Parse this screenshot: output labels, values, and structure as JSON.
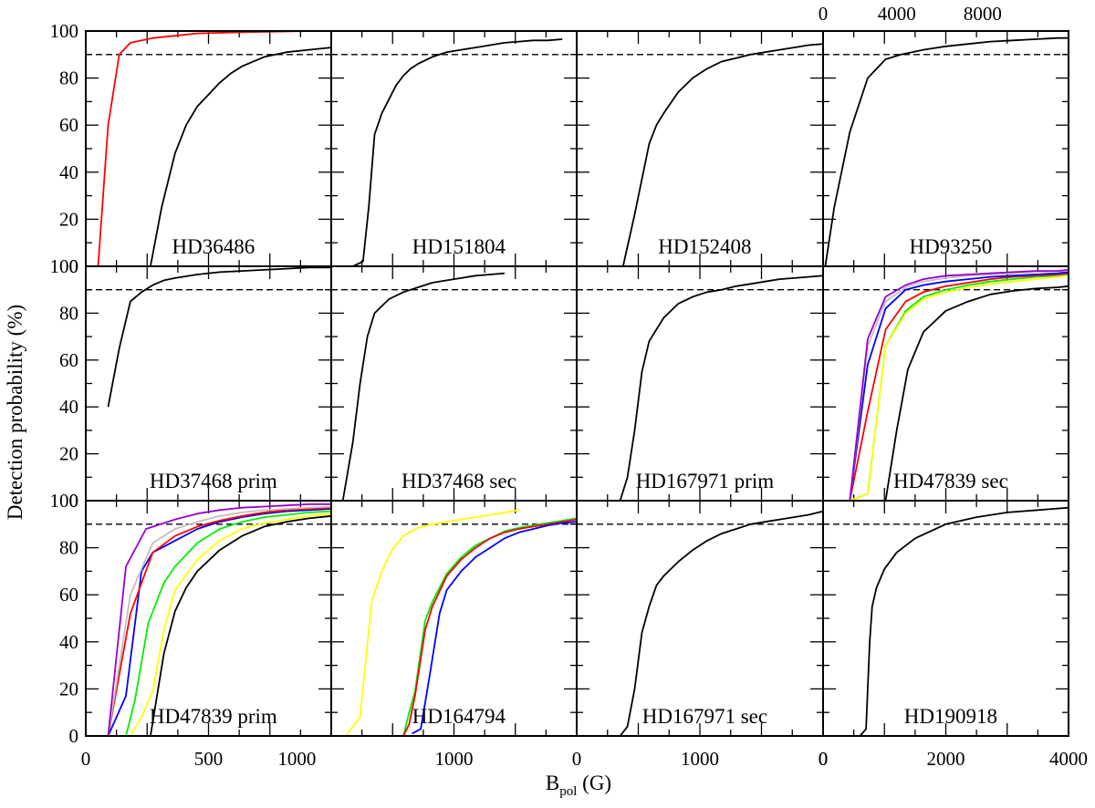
{
  "chart_data": {
    "type": "line",
    "ylabel": "Detection probability (%)",
    "xlabel": "B",
    "xlabel_sub": "pol",
    "xlabel_unit": " (G)",
    "ylim": [
      0,
      100
    ],
    "yticks": [
      0,
      20,
      40,
      60,
      80,
      100
    ],
    "threshold": 90,
    "top_axis_ticks": [
      "0",
      "4000",
      "8000"
    ],
    "bottom_axis_ticks": [
      [
        "0",
        "500",
        "1000"
      ],
      [
        "1000",
        "0"
      ],
      [
        "1000",
        "0"
      ],
      [
        "0",
        "2000",
        "4000"
      ]
    ],
    "panels": [
      {
        "label": "HD36486",
        "xlim": [
          0,
          1100
        ],
        "series": [
          {
            "color": "#ff0000",
            "x": [
              55,
              100,
              150,
              200,
              300,
              400,
              500,
              700,
              1000
            ],
            "y": [
              0,
              60,
              90,
              95,
              97,
              98,
              99,
              99.5,
              100
            ]
          },
          {
            "color": "#000000",
            "x": [
              290,
              340,
              400,
              450,
              500,
              550,
              600,
              650,
              700,
              800,
              900,
              1000,
              1100
            ],
            "y": [
              0,
              25,
              48,
              60,
              68,
              73,
              78,
              82,
              85,
              89,
              91,
              92,
              93
            ]
          }
        ]
      },
      {
        "label": "HD151804",
        "xlim": [
          0,
          1700
        ],
        "series": [
          {
            "color": "#000000",
            "x": [
              150,
              220,
              260,
              300,
              350,
              400,
              450,
              500,
              550,
              600,
              700,
              800,
              900,
              1000,
              1100,
              1200,
              1300,
              1400,
              1500,
              1600
            ],
            "y": [
              0,
              2,
              25,
              56,
              65,
              71,
              77,
              81,
              84,
              86,
              89,
              91,
              92,
              93,
              94,
              95,
              95.5,
              96,
              96,
              96.5
            ]
          }
        ]
      },
      {
        "label": "HD152408",
        "xlim": [
          0,
          1700
        ],
        "series": [
          {
            "color": "#000000",
            "x": [
              320,
              400,
              500,
              550,
              600,
              700,
              800,
              900,
              1000,
              1100,
              1200,
              1300,
              1400,
              1500,
              1600,
              1700
            ],
            "y": [
              0,
              22,
              52,
              60,
              65,
              74,
              80,
              84,
              87,
              88.5,
              90,
              91,
              92,
              93,
              94,
              94.5
            ]
          }
        ]
      },
      {
        "label": "HD93250",
        "xlim": [
          0,
          11000
        ],
        "series": [
          {
            "color": "#000000",
            "x": [
              100,
              500,
              1200,
              2000,
              2800,
              3500,
              4500,
              5500,
              6500,
              7500,
              8500,
              9500,
              10500,
              11000
            ],
            "y": [
              0,
              25,
              57,
              80,
              88,
              90,
              92,
              93.5,
              94.5,
              95.5,
              96,
              96.5,
              97,
              97
            ]
          }
        ]
      },
      {
        "label": "HD37468 prim",
        "xlim": [
          0,
          1100
        ],
        "series": [
          {
            "color": "#000000",
            "x": [
              100,
              150,
              200,
              250,
              300,
              350,
              400,
              500,
              600,
              700,
              800,
              900,
              1000,
              1100
            ],
            "y": [
              40,
              65,
              85,
              89,
              92,
              94,
              95,
              96.5,
              97.5,
              98,
              98.5,
              99,
              99.5,
              99.5
            ]
          }
        ]
      },
      {
        "label": "HD37468 sec",
        "xlim": [
          0,
          1700
        ],
        "series": [
          {
            "color": "#000000",
            "x": [
              80,
              150,
              200,
              250,
              300,
              400,
              500,
              600,
              700,
              800,
              900,
              1000,
              1100,
              1200
            ],
            "y": [
              0,
              25,
              50,
              70,
              80,
              86,
              89,
              91,
              93,
              94,
              95,
              96,
              96.5,
              97
            ]
          }
        ]
      },
      {
        "label": "HD167971 prim",
        "xlim": [
          0,
          1700
        ],
        "series": [
          {
            "color": "#000000",
            "x": [
              300,
              350,
              400,
              450,
              500,
              600,
              700,
              800,
              900,
              1000,
              1100,
              1200,
              1300,
              1400,
              1500,
              1600,
              1700
            ],
            "y": [
              0,
              10,
              30,
              55,
              68,
              78,
              84,
              87,
              89,
              90,
              91.5,
              92.5,
              93.5,
              94.5,
              95,
              95.5,
              96
            ]
          }
        ]
      },
      {
        "label": "HD47839 sec",
        "xlim": [
          0,
          11000
        ],
        "series": [
          {
            "color": "#000000",
            "x": [
              2800,
              3300,
              3800,
              4500,
              5500,
              6500,
              7500,
              8500,
              9500,
              10500,
              11000
            ],
            "y": [
              0,
              30,
              56,
              72,
              81,
              85,
              88,
              89.5,
              90.5,
              91,
              91.5
            ]
          },
          {
            "color": "#00ee00",
            "x": [
              1200,
              2000,
              2800,
              3700,
              4500,
              5500,
              6500,
              7500,
              8500,
              9500,
              10500,
              11000
            ],
            "y": [
              0,
              3,
              66,
              81,
              87,
              90,
              92,
              93.5,
              94.5,
              95.5,
              96,
              96.5
            ]
          },
          {
            "color": "#ffff00",
            "x": [
              1200,
              2000,
              2800,
              3700,
              4500,
              5500,
              6500,
              7500,
              8500,
              9500,
              10500,
              11000
            ],
            "y": [
              0,
              3,
              66,
              80,
              86,
              89,
              91,
              92.5,
              93.5,
              94.5,
              95.5,
              96
            ]
          },
          {
            "color": "#ff0000",
            "x": [
              1200,
              2000,
              2800,
              3700,
              4500,
              5500,
              6500,
              7500,
              8500,
              9500,
              10500,
              11000
            ],
            "y": [
              0,
              38,
              73,
              85,
              89,
              91.5,
              93,
              94.5,
              95.5,
              96,
              96.5,
              97
            ]
          },
          {
            "color": "#0000ff",
            "x": [
              1200,
              2000,
              2800,
              3700,
              4500,
              5500,
              6500,
              7500,
              8500,
              9500,
              10500,
              11000
            ],
            "y": [
              0,
              58,
              82,
              90,
              92,
              93.5,
              94.5,
              95.5,
              96,
              96.5,
              97,
              97.5
            ]
          },
          {
            "color": "#c0c0c0",
            "x": [
              1200,
              2000,
              2800,
              3700,
              4500,
              5500,
              6500,
              7500,
              8500,
              9500,
              10500,
              11000
            ],
            "y": [
              0,
              66,
              85,
              91,
              93.5,
              95,
              96,
              96.5,
              97,
              97.5,
              98,
              98
            ]
          },
          {
            "color": "#9900cc",
            "x": [
              1200,
              2000,
              2800,
              3700,
              4500,
              5500,
              6500,
              7500,
              8500,
              9500,
              10500,
              11000
            ],
            "y": [
              0,
              69,
              87,
              92,
              94.5,
              96,
              96.5,
              97,
              97.5,
              98,
              98,
              98.5
            ]
          }
        ]
      },
      {
        "label": "HD47839 prim",
        "xlim": [
          0,
          1100
        ],
        "series": [
          {
            "color": "#000000",
            "x": [
              290,
              350,
              400,
              450,
              500,
              600,
              700,
              800,
              900,
              1000,
              1100
            ],
            "y": [
              0,
              35,
              53,
              63,
              70,
              79,
              85,
              89,
              91,
              92.5,
              93.5
            ]
          },
          {
            "color": "#ffff00",
            "x": [
              200,
              250,
              300,
              350,
              400,
              500,
              600,
              700,
              800,
              900,
              1000,
              1100
            ],
            "y": [
              0,
              8,
              19,
              45,
              62,
              75,
              83,
              88,
              90.5,
              92,
              93.5,
              94.5
            ]
          },
          {
            "color": "#00ee00",
            "x": [
              180,
              220,
              280,
              350,
              400,
              500,
              600,
              700,
              800,
              900,
              1000,
              1100
            ],
            "y": [
              0,
              15,
              48,
              65,
              72,
              82,
              88,
              91,
              93,
              94,
              95,
              95.5
            ]
          },
          {
            "color": "#0000ff",
            "x": [
              100,
              180,
              250,
              300,
              400,
              500,
              600,
              700,
              800,
              900,
              1000,
              1100
            ],
            "y": [
              0,
              17,
              70,
              78,
              83,
              88,
              91,
              93,
              94.5,
              95.5,
              96,
              96.5
            ]
          },
          {
            "color": "#ff0000",
            "x": [
              100,
              200,
              300,
              400,
              500,
              600,
              700,
              800,
              900,
              1000,
              1100
            ],
            "y": [
              0,
              52,
              78,
              85,
              89,
              91.5,
              93.5,
              95,
              96,
              96.5,
              97
            ]
          },
          {
            "color": "#c0c0c0",
            "x": [
              100,
              200,
              300,
              400,
              500,
              600,
              700,
              800,
              900,
              1000,
              1100
            ],
            "y": [
              0,
              60,
              82,
              88,
              91,
              93.5,
              95,
              96,
              96.5,
              97,
              97.5
            ]
          },
          {
            "color": "#9900cc",
            "x": [
              100,
              180,
              270,
              400,
              500,
              600,
              700,
              800,
              900,
              1000,
              1100
            ],
            "y": [
              0,
              72,
              88,
              92,
              94.5,
              96,
              97,
              97.5,
              98,
              98.5,
              98.5
            ]
          }
        ]
      },
      {
        "label": "HD164794",
        "xlim": [
          0,
          1700
        ],
        "series": [
          {
            "color": "#ffff00",
            "x": [
              100,
              200,
              280,
              350,
              420,
              500,
              600,
              700,
              800,
              900,
              1000,
              1100,
              1200,
              1300
            ],
            "y": [
              0,
              8,
              57,
              70,
              79,
              85,
              88.5,
              90,
              91,
              92,
              93,
              94,
              95,
              96
            ]
          },
          {
            "color": "#00ee00",
            "x": [
              500,
              540,
              580,
              650,
              700,
              800,
              900,
              1000,
              1100,
              1200,
              1300,
              1400,
              1500,
              1600,
              1700
            ],
            "y": [
              0,
              10,
              19,
              49,
              57,
              69,
              76,
              81,
              84,
              87,
              88.5,
              89.5,
              90.5,
              91.5,
              92.5
            ]
          },
          {
            "color": "#ff0000",
            "x": [
              500,
              540,
              580,
              650,
              700,
              800,
              900,
              1000,
              1100,
              1200,
              1300,
              1400,
              1500,
              1600,
              1700
            ],
            "y": [
              0,
              5,
              17,
              45,
              55,
              68,
              75,
              80,
              84,
              86.5,
              88,
              89,
              90,
              91,
              92
            ]
          },
          {
            "color": "#0000ff",
            "x": [
              560,
              620,
              680,
              750,
              800,
              900,
              1000,
              1100,
              1200,
              1300,
              1400,
              1500,
              1600,
              1700
            ],
            "y": [
              1,
              3,
              25,
              52,
              62,
              70,
              76,
              80,
              84,
              86.5,
              88,
              89.5,
              90.5,
              91
            ]
          }
        ]
      },
      {
        "label": "HD167971 sec",
        "xlim": [
          0,
          1700
        ],
        "series": [
          {
            "color": "#000000",
            "x": [
              300,
              350,
              400,
              450,
              500,
              550,
              600,
              700,
              800,
              900,
              1000,
              1100,
              1200,
              1300,
              1400,
              1500,
              1600,
              1700
            ],
            "y": [
              0,
              4,
              20,
              44,
              55,
              64,
              68,
              74,
              79,
              83,
              86,
              88,
              90,
              91,
              92,
              93,
              94,
              95.5
            ]
          }
        ]
      },
      {
        "label": "HD190918",
        "xlim": [
          0,
          4000
        ],
        "series": [
          {
            "color": "#000000",
            "x": [
              600,
              700,
              760,
              800,
              870,
              1000,
              1200,
              1500,
              2000,
              2500,
              3000,
              3500,
              4000
            ],
            "y": [
              0,
              3,
              40,
              55,
              63,
              71,
              78,
              84,
              90,
              93,
              95,
              96,
              97
            ]
          }
        ]
      }
    ]
  }
}
